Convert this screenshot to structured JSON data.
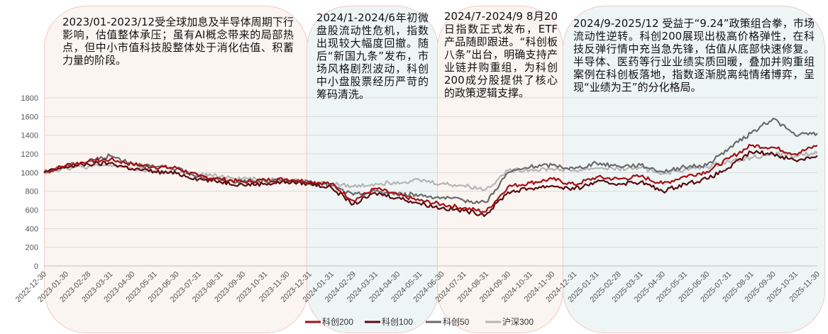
{
  "colors": {
    "kc200": "#a50f15",
    "kc100": "#5c0a10",
    "kc50": "#6b6b6b",
    "hs300": "#b5b5b5",
    "panel_warm": "#fbf5f1",
    "panel_cool": "#eef6f5",
    "grid": "#d9d9d9"
  },
  "annotations": [
    {
      "text": "2023/01-2023/12受全球加息及半导体周期下行影响，估值整体承压；虽有AI概念带来的局部热点，但中小市值科技股整体处于消化估值、积蓄力量的阶段。"
    },
    {
      "text": "2024/1-2024/6年初微盘股流动性危机，指数出现较大幅度回撤。随后“新国九条”发布，市场风格剧烈波动，科创中小盘股票经历严苛的筹码清洗。"
    },
    {
      "text": "2024/7-2024/9  8月20日指数正式发布，ETF产品随即跟进。“科创板八条”出台，明确支持产业链并购重组，为科创200成分股提供了核心的政策逻辑支撑。"
    },
    {
      "text": "2024/9-2025/12  受益于“9.24”政策组合拳，市场流动性逆转。科创200展现出极高价格弹性，在科技反弹行情中充当急先锋，估值从底部快速修复。半导体、医药等行业业绩实质回暖，叠加并购重组案例在科创板落地，指数逐渐脱离纯情绪博弈，呈现“业绩为王”的分化格局。"
    }
  ],
  "chart_data": {
    "type": "line",
    "ylim": [
      0,
      1800
    ],
    "yticks": [
      0,
      200,
      400,
      600,
      800,
      1000,
      1200,
      1400,
      1600,
      1800
    ],
    "x_tick_labels": [
      "2022-12-30",
      "2023-01-30",
      "2023-02-28",
      "2023-03-31",
      "2023-04-30",
      "2023-05-31",
      "2023-06-30",
      "2023-07-31",
      "2023-08-31",
      "2023-09-30",
      "2023-10-31",
      "2023-11-30",
      "2023-12-31",
      "2024-01-31",
      "2024-02-29",
      "2024-03-31",
      "2024-04-30",
      "2024-05-31",
      "2024-06-30",
      "2024-07-31",
      "2024-08-31",
      "2024-09-30",
      "2024-10-31",
      "2024-11-30",
      "2024-12-31",
      "2025-01-31",
      "2025-02-28",
      "2025-03-31",
      "2025-04-30",
      "2025-05-31",
      "2025-06-30",
      "2025-07-31",
      "2025-08-31",
      "2025-09-30",
      "2025-10-31",
      "2025-11-30"
    ],
    "series": [
      {
        "name": "科创200",
        "color": "#a50f15",
        "values": [
          1000,
          1080,
          1120,
          1140,
          1090,
          1060,
          1050,
          960,
          930,
          900,
          920,
          930,
          905,
          880,
          700,
          830,
          760,
          700,
          660,
          620,
          580,
          850,
          890,
          930,
          870,
          950,
          930,
          960,
          880,
          960,
          1010,
          1150,
          1290,
          1270,
          1200,
          1290
        ]
      },
      {
        "name": "科创100",
        "color": "#5c0a10",
        "values": [
          1000,
          1060,
          1090,
          1100,
          1040,
          1010,
          990,
          930,
          900,
          870,
          880,
          900,
          880,
          840,
          660,
          780,
          730,
          670,
          620,
          590,
          550,
          790,
          830,
          860,
          820,
          900,
          880,
          900,
          800,
          880,
          930,
          1050,
          1220,
          1200,
          1130,
          1180
        ]
      },
      {
        "name": "科创50",
        "color": "#6b6b6b",
        "values": [
          1000,
          1070,
          1120,
          1180,
          1100,
          1060,
          1040,
          960,
          920,
          900,
          910,
          920,
          890,
          860,
          760,
          800,
          770,
          760,
          730,
          700,
          680,
          1000,
          1060,
          1080,
          1040,
          1100,
          1070,
          1080,
          1010,
          1060,
          1080,
          1260,
          1420,
          1580,
          1400,
          1420
        ]
      },
      {
        "name": "沪深300",
        "color": "#b5b5b5",
        "values": [
          1000,
          1050,
          1060,
          1080,
          1040,
          1010,
          1000,
          980,
          960,
          940,
          930,
          920,
          900,
          880,
          850,
          880,
          900,
          920,
          880,
          860,
          820,
          1020,
          1030,
          1040,
          1020,
          1050,
          1040,
          1050,
          990,
          1030,
          1060,
          1120,
          1160,
          1200,
          1180,
          1210
        ]
      }
    ]
  }
}
